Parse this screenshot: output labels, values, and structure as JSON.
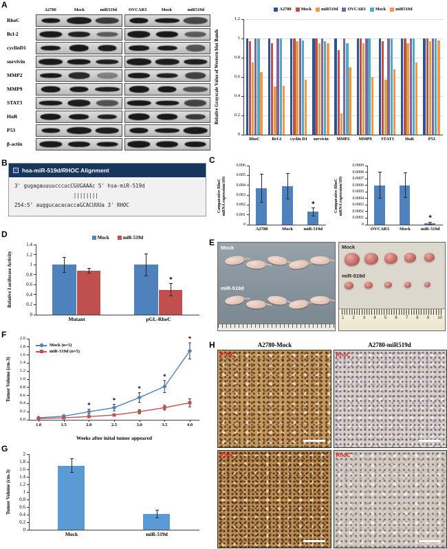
{
  "panels": {
    "A": "A",
    "B": "B",
    "C": "C",
    "D": "D",
    "E": "E",
    "F": "F",
    "G": "G",
    "H": "H"
  },
  "panelA": {
    "blot": {
      "lane_headers": [
        "A2780",
        "Mock",
        "miR519d",
        "OVCAR3",
        "Mock",
        "miR519d"
      ],
      "proteins": [
        "RhoC",
        "Bcl-2",
        "cyclinD1",
        "survivin",
        "MMP2",
        "MMP9",
        "STAT3",
        "HuR",
        "P53",
        "β-actin"
      ]
    }
  },
  "panelB": {
    "title": "hsa-miR-519d/RHOC Alignment",
    "lines": [
      "3' gugagauuuucccucCGUGAAAc 5' hsa-miR-519d",
      "                   ||||||||",
      "254:5' auggucacacaccaGCACUUUa 3' RHOC"
    ]
  },
  "panelE": {
    "photo1": {
      "rows": [
        {
          "label": "Mock",
          "count": 5
        },
        {
          "label": "miR-519d",
          "count": 5
        }
      ]
    },
    "photo2": {
      "rows": [
        {
          "label": "Mock",
          "count": 5
        },
        {
          "label": "miR-519d",
          "count": 5
        }
      ],
      "ruler_numbers": [
        "1",
        "2",
        "3",
        "4",
        "5",
        "6",
        "7",
        "8",
        "9",
        "10"
      ]
    }
  },
  "panelH": {
    "col_headers": [
      "A2780-Mock",
      "A2780-miR519d"
    ],
    "cells": [
      {
        "label": "RhoC",
        "variant": "mock-dense"
      },
      {
        "label": "RhoC",
        "variant": "mir-sparse"
      },
      {
        "label": "RhoC",
        "variant": "mock-dense2"
      },
      {
        "label": "RhoC",
        "variant": "mir-sparse2"
      }
    ]
  },
  "chart_data": [
    {
      "id": "westernBars",
      "type": "bar",
      "grid": true,
      "legend": true,
      "group_frac": 0.78,
      "ylabel": "Relative Grayscale Value of Western blot Bands",
      "ylim": [
        0,
        1.2
      ],
      "yticks": [
        "0",
        "0.2",
        "0.4",
        "0.6",
        "0.8",
        "1",
        "1.2"
      ],
      "categories": [
        "RhoC",
        "Bcl-2",
        "cyclin D1",
        "survivin",
        "MMP2",
        "MMP9",
        "STAT3",
        "HuR",
        "P53"
      ],
      "series": [
        {
          "name": "A2780",
          "color": "#2E5395",
          "values": [
            1.0,
            1.0,
            1.0,
            1.0,
            1.0,
            1.0,
            1.0,
            1.0,
            1.0
          ]
        },
        {
          "name": "Mock",
          "color": "#C0504D",
          "values": [
            0.97,
            0.95,
            1.0,
            1.0,
            0.88,
            1.0,
            0.97,
            1.0,
            1.0
          ]
        },
        {
          "name": "miR519d",
          "color": "#E2A13C",
          "values": [
            0.75,
            0.5,
            0.97,
            0.95,
            0.22,
            0.95,
            0.57,
            0.95,
            0.97
          ]
        },
        {
          "name": "OVCAR3",
          "color": "#8064A2",
          "values": [
            1.0,
            1.0,
            1.0,
            1.0,
            1.0,
            1.0,
            1.0,
            1.0,
            1.0
          ]
        },
        {
          "name": "Mock",
          "color": "#4BACC6",
          "values": [
            1.0,
            1.0,
            0.98,
            0.97,
            0.95,
            1.0,
            1.0,
            1.0,
            1.0
          ]
        },
        {
          "name": "miR519d",
          "color": "#F79646",
          "values": [
            0.65,
            0.51,
            0.57,
            0.95,
            0.7,
            0.6,
            0.68,
            0.75,
            0.98
          ]
        }
      ]
    },
    {
      "id": "rhocA2780",
      "type": "bar",
      "legend": false,
      "group_frac": 0.45,
      "ylabel": "Comparative RhoC\nmRNA expression/18S",
      "ylim": [
        0,
        0.006
      ],
      "yticks": [
        "0",
        "0.001",
        "0.002",
        "0.003",
        "0.004",
        "0.005",
        "0.006"
      ],
      "categories": [
        "A2780",
        "Mock",
        "miR-519d"
      ],
      "series": [
        {
          "color": "#4F81BD",
          "values": [
            0.0037,
            0.0039,
            0.0013
          ],
          "errors": [
            0.0014,
            0.0013,
            0.0004
          ],
          "stars": [
            false,
            false,
            true
          ]
        }
      ]
    },
    {
      "id": "rhocOVCAR3",
      "type": "bar",
      "legend": false,
      "group_frac": 0.45,
      "ylabel": "Comparative RhoC\nmRNA expression/18S",
      "ylim": [
        0,
        0.0009
      ],
      "yticks": [
        "0",
        "0.0001",
        "0.0002",
        "0.0003",
        "0.0004",
        "0.0005",
        "0.0006",
        "0.0007",
        "0.0008",
        "0.0009"
      ],
      "categories": [
        "OVCAR3",
        "Mock",
        "miR-519d"
      ],
      "series": [
        {
          "color": "#4F81BD",
          "values": [
            0.0006,
            0.0006,
            2e-05
          ],
          "errors": [
            0.0002,
            0.00019,
            2e-05
          ],
          "stars": [
            false,
            false,
            true
          ]
        }
      ]
    },
    {
      "id": "luciferase",
      "type": "bar",
      "legend": true,
      "group_frac": 0.6,
      "ylabel": "Relative Luciferase Activity",
      "ylim": [
        0,
        1.4
      ],
      "yticks": [
        "0",
        "0.2",
        "0.4",
        "0.6",
        "0.8",
        "1",
        "1.2",
        "1.4"
      ],
      "categories": [
        "Mutant",
        "pGL-RhoC"
      ],
      "series": [
        {
          "name": "Mock",
          "color": "#4F81BD",
          "values": [
            1.0,
            1.0
          ],
          "errors": [
            0.15,
            0.22
          ]
        },
        {
          "name": "miR-519d",
          "color": "#C0504D",
          "values": [
            0.88,
            0.5
          ],
          "errors": [
            0.05,
            0.12
          ],
          "stars": [
            false,
            true
          ]
        }
      ]
    },
    {
      "id": "tumorGrowth",
      "type": "line",
      "xlabel": "Weeks after inital tumor appeared",
      "ylabel": "Tumor Volume (cm-3)",
      "ylim": [
        0,
        2.0
      ],
      "yticks": [
        "0.0",
        "0.2",
        "0.4",
        "0.6",
        "0.8",
        "1.0",
        "1.2",
        "1.4",
        "1.6",
        "1.8",
        "2.0"
      ],
      "x": [
        "1.0",
        "1.5",
        "2.0",
        "2.5",
        "3.0",
        "3.5",
        "4.0"
      ],
      "series": [
        {
          "name": "Mock (n=5)",
          "color": "#4F81BD",
          "marker": "diamond",
          "values": [
            0.05,
            0.09,
            0.2,
            0.3,
            0.55,
            0.82,
            1.7
          ],
          "errors": [
            0.02,
            0.03,
            0.06,
            0.08,
            0.12,
            0.15,
            0.2
          ],
          "stars": [
            false,
            false,
            true,
            true,
            true,
            true,
            true
          ]
        },
        {
          "name": "miR-519d (n=5)",
          "color": "#C0504D",
          "marker": "square",
          "values": [
            0.03,
            0.05,
            0.08,
            0.12,
            0.2,
            0.3,
            0.42
          ],
          "errors": [
            0.01,
            0.02,
            0.02,
            0.03,
            0.05,
            0.06,
            0.1
          ]
        }
      ]
    },
    {
      "id": "tumorVolume",
      "type": "bar",
      "legend": false,
      "group_frac": 0.32,
      "ylabel": "Tumor Volume (cm-3)",
      "ylim": [
        0,
        2.0
      ],
      "yticks": [
        "0",
        "0.2",
        "0.4",
        "0.6",
        "0.8",
        "1",
        "1.2",
        "1.4",
        "1.6",
        "1.8",
        "2"
      ],
      "categories": [
        "Mock",
        "miR-519d"
      ],
      "series": [
        {
          "color": "#5B9BD5",
          "values": [
            1.7,
            0.42
          ],
          "errors": [
            0.18,
            0.1
          ]
        }
      ]
    }
  ]
}
